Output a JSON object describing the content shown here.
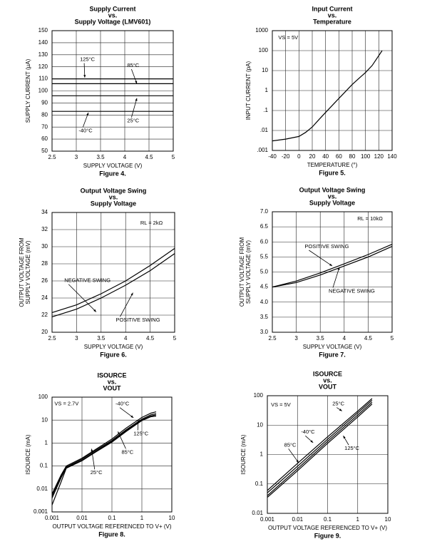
{
  "chart_data": [
    {
      "type": "line",
      "title": [
        "Supply Current",
        "vs.",
        "Supply Voltage (LMV601)"
      ],
      "xlabel": "SUPPLY VOLTAGE (V)",
      "ylabel": [
        "SUPPLY CURRENT (µA)"
      ],
      "caption": "Figure 4.",
      "xlim": [
        2.5,
        5
      ],
      "xticks": [
        2.5,
        3,
        3.5,
        4,
        4.5,
        5
      ],
      "ylim": [
        50,
        150
      ],
      "yticks": [
        50,
        60,
        70,
        80,
        90,
        100,
        110,
        120,
        130,
        140,
        150
      ],
      "grid": true,
      "series": [
        {
          "name": "125°C",
          "color": "#000000",
          "x": [
            2.5,
            5
          ],
          "values": [
            110,
            110
          ]
        },
        {
          "name": "85°C",
          "color": "#000000",
          "x": [
            2.5,
            5
          ],
          "values": [
            106,
            106
          ]
        },
        {
          "name": "25°C",
          "color": "#000000",
          "x": [
            2.5,
            5
          ],
          "values": [
            96,
            96
          ]
        },
        {
          "name": "-40°C",
          "color": "#000000",
          "x": [
            2.5,
            5
          ],
          "values": [
            83,
            83
          ]
        }
      ],
      "annotations": [
        "125°C",
        "85°C",
        "25°C",
        "-40°C"
      ]
    },
    {
      "type": "line",
      "title": [
        "Input Current",
        "vs.",
        "Temperature"
      ],
      "xlabel": "TEMPERATURE (°)",
      "ylabel": [
        "INPUT CURRENT (pA)"
      ],
      "caption": "Figure 5.",
      "xlim": [
        -40,
        140
      ],
      "xticks": [
        -40,
        -20,
        0,
        20,
        40,
        60,
        80,
        100,
        120,
        140
      ],
      "ylim": [
        0.001,
        1000
      ],
      "ylog": true,
      "yticks": [
        {
          "value": 0.001,
          "label": ".001"
        },
        {
          "value": 0.01,
          "label": ".01"
        },
        {
          "value": 0.1,
          "label": ".1"
        },
        1,
        10,
        100,
        1000
      ],
      "grid": true,
      "series": [
        {
          "name": "VS = 5V",
          "color": "#000000",
          "x": [
            -40,
            -20,
            0,
            10,
            20,
            30,
            40,
            50,
            60,
            70,
            80,
            90,
            100,
            110,
            125
          ],
          "values": [
            0.003,
            0.0037,
            0.005,
            0.008,
            0.015,
            0.035,
            0.08,
            0.18,
            0.4,
            0.9,
            2,
            4,
            8,
            18,
            100
          ]
        }
      ],
      "annotations": [
        "VS = 5V"
      ]
    },
    {
      "type": "line",
      "title": [
        "Output Voltage Swing",
        "vs.",
        "Supply Voltage"
      ],
      "xlabel": "SUPPLY VOLTAGE (V)",
      "ylabel": [
        "OUTPUT VOLTAGE FROM",
        "SUPPLY VOLTAGE (mV)"
      ],
      "caption": "Figure 6.",
      "xlim": [
        2.5,
        5
      ],
      "xticks": [
        2.5,
        3,
        3.5,
        4,
        4.5,
        5
      ],
      "ylim": [
        20,
        34
      ],
      "yticks": [
        20,
        22,
        24,
        26,
        28,
        30,
        32,
        34
      ],
      "grid": true,
      "series": [
        {
          "name": "NEGATIVE SWING",
          "color": "#000000",
          "x": [
            2.5,
            3,
            3.5,
            4,
            4.5,
            5
          ],
          "values": [
            22.3,
            23.2,
            24.5,
            26,
            27.8,
            29.8
          ]
        },
        {
          "name": "POSITIVE SWING",
          "color": "#000000",
          "x": [
            2.5,
            3,
            3.5,
            4,
            4.5,
            5
          ],
          "values": [
            21.8,
            22.7,
            24,
            25.5,
            27.2,
            29.2
          ]
        }
      ],
      "annotations": [
        "RL = 2kΩ",
        "NEGATIVE SWING",
        "POSITIVE SWING"
      ]
    },
    {
      "type": "line",
      "title": [
        "Output Voltage Swing",
        "vs.",
        "Supply Voltage"
      ],
      "xlabel": "SUPPLY VOLTAGE (V)",
      "ylabel": [
        "OUTPUT VOLTAGE FROM",
        "SUPPLY VOLTAGE (mV)"
      ],
      "caption": "Figure 7.",
      "xlim": [
        2.5,
        5
      ],
      "xticks": [
        2.5,
        3,
        3.5,
        4,
        4.5,
        5
      ],
      "ylim": [
        3,
        7
      ],
      "yticks": [
        {
          "value": 3,
          "label": "3.0"
        },
        3.5,
        {
          "value": 4,
          "label": "4.0"
        },
        4.5,
        {
          "value": 5,
          "label": "5.0"
        },
        5.5,
        {
          "value": 6,
          "label": "6.0"
        },
        6.5,
        {
          "value": 7,
          "label": "7.0"
        }
      ],
      "grid": true,
      "series": [
        {
          "name": "POSITIVE SWING",
          "color": "#000000",
          "x": [
            2.5,
            3,
            3.5,
            4,
            4.5,
            5
          ],
          "values": [
            4.5,
            4.7,
            4.97,
            5.27,
            5.58,
            5.92
          ]
        },
        {
          "name": "NEGATIVE SWING",
          "color": "#000000",
          "x": [
            2.5,
            3,
            3.5,
            4,
            4.5,
            5
          ],
          "values": [
            4.5,
            4.65,
            4.9,
            5.2,
            5.5,
            5.85
          ]
        }
      ],
      "annotations": [
        "RL = 10kΩ",
        "POSITIVE SWING",
        "NEGATIVE SWING"
      ]
    },
    {
      "type": "line",
      "title": [
        "ISOURCE",
        "vs.",
        "VOUT"
      ],
      "xlabel": "OUTPUT VOLTAGE REFERENCED TO V+ (V)",
      "ylabel": [
        "ISOURCE (mA)"
      ],
      "caption": "Figure 8.",
      "xlim": [
        0.001,
        10
      ],
      "xlog": true,
      "xticks": [
        0.001,
        0.01,
        0.1,
        1,
        10
      ],
      "ylim": [
        0.001,
        100
      ],
      "ylog": true,
      "yticks": [
        0.001,
        0.01,
        0.1,
        1,
        10,
        100
      ],
      "grid": true,
      "series": [
        {
          "name": "-40°C",
          "color": "#000000",
          "x": [
            0.001,
            0.002,
            0.003,
            0.01,
            0.03,
            0.1,
            0.3,
            1,
            2,
            3
          ],
          "values": [
            0.006,
            0.04,
            0.1,
            0.22,
            0.55,
            1.5,
            4.5,
            13,
            20,
            23
          ]
        },
        {
          "name": "125°C",
          "color": "#000000",
          "x": [
            0.001,
            0.002,
            0.003,
            0.01,
            0.03,
            0.1,
            0.3,
            1,
            2,
            3
          ],
          "values": [
            0.005,
            0.035,
            0.09,
            0.2,
            0.5,
            1.3,
            3.8,
            11,
            17,
            19
          ]
        },
        {
          "name": "85°C",
          "color": "#000000",
          "x": [
            0.001,
            0.002,
            0.003,
            0.01,
            0.03,
            0.1,
            0.3,
            1,
            2,
            3
          ],
          "values": [
            0.004,
            0.03,
            0.085,
            0.18,
            0.45,
            1.2,
            3.5,
            10,
            15,
            17
          ]
        },
        {
          "name": "25°C",
          "color": "#000000",
          "x": [
            0.001,
            0.002,
            0.003,
            0.01,
            0.03,
            0.1,
            0.3,
            1,
            2,
            3
          ],
          "values": [
            0.002,
            0.02,
            0.08,
            0.17,
            0.42,
            1.1,
            3.2,
            9.5,
            14,
            15
          ]
        }
      ],
      "annotations": [
        "VS = 2.7V",
        "-40°C",
        "125°C",
        "85°C",
        "25°C"
      ]
    },
    {
      "type": "line",
      "title": [
        "ISOURCE",
        "vs.",
        "VOUT"
      ],
      "xlabel": "OUTPUT VOLTAGE REFERENCED TO V+ (V)",
      "ylabel": [
        "ISOURCE (mA)"
      ],
      "caption": "Figure 9.",
      "xlim": [
        0.001,
        10
      ],
      "xlog": true,
      "xticks": [
        0.001,
        0.01,
        0.1,
        1,
        10
      ],
      "ylim": [
        0.01,
        100
      ],
      "ylog": true,
      "yticks": [
        0.01,
        0.1,
        1,
        10,
        100
      ],
      "grid": true,
      "series": [
        {
          "name": "25°C",
          "color": "#000000",
          "x": [
            0.001,
            0.01,
            0.1,
            1,
            3
          ],
          "values": [
            0.06,
            0.5,
            4,
            30,
            80
          ]
        },
        {
          "name": "-40°C",
          "color": "#000000",
          "x": [
            0.001,
            0.01,
            0.1,
            1,
            3
          ],
          "values": [
            0.05,
            0.4,
            3.3,
            26,
            70
          ]
        },
        {
          "name": "85°C",
          "color": "#000000",
          "x": [
            0.001,
            0.01,
            0.1,
            1,
            3
          ],
          "values": [
            0.04,
            0.33,
            2.8,
            22,
            60
          ]
        },
        {
          "name": "125°C",
          "color": "#000000",
          "x": [
            0.001,
            0.01,
            0.1,
            1,
            3
          ],
          "values": [
            0.035,
            0.28,
            2.4,
            19,
            52
          ]
        }
      ],
      "annotations": [
        "VS = 5V",
        "25°C",
        "-40°C",
        "85°C",
        "125°C"
      ]
    }
  ]
}
